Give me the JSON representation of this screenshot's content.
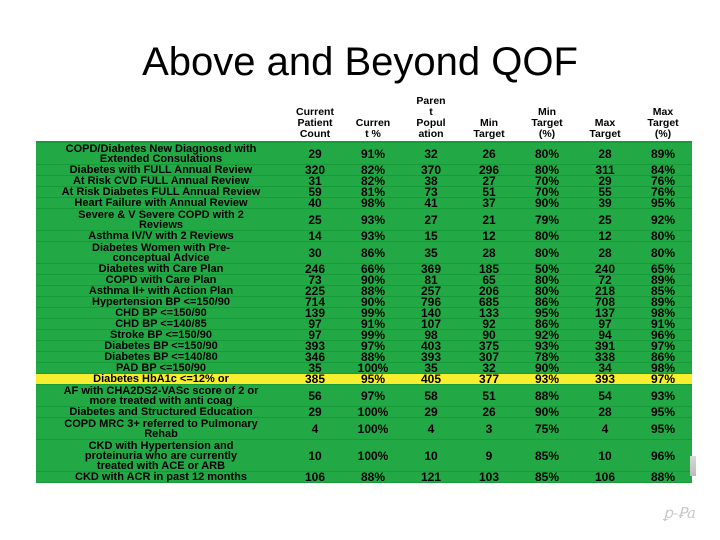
{
  "slide": {
    "title": "Above and Beyond QOF"
  },
  "table": {
    "columns": [
      {
        "label": ""
      },
      {
        "label": "Current\nPatient\nCount"
      },
      {
        "label": "Curren\nt %"
      },
      {
        "label": "Paren\nt\nPopul\nation"
      },
      {
        "label": "Min\nTarget"
      },
      {
        "label": "Min\nTarget\n(%)"
      },
      {
        "label": "Max\nTarget"
      },
      {
        "label": "Max\nTarget\n(%)"
      }
    ],
    "highlight_color": "#f7ee2f",
    "row_color": "#23a846",
    "rows": [
      {
        "label": "COPD/Diabetes New Diagnosed with\nExtended Consulations",
        "count": "29",
        "pct": "91%",
        "parent": "32",
        "min": "26",
        "min_pct": "80%",
        "max": "28",
        "max_pct": "89%"
      },
      {
        "label": "Diabetes with FULL Annual Review",
        "count": "320",
        "pct": "82%",
        "parent": "370",
        "min": "296",
        "min_pct": "80%",
        "max": "311",
        "max_pct": "84%"
      },
      {
        "label": "At Risk CVD FULL Annual Review",
        "count": "31",
        "pct": "82%",
        "parent": "38",
        "min": "27",
        "min_pct": "70%",
        "max": "29",
        "max_pct": "76%"
      },
      {
        "label": "At Risk Diabetes FULL Annual Review",
        "count": "59",
        "pct": "81%",
        "parent": "73",
        "min": "51",
        "min_pct": "70%",
        "max": "55",
        "max_pct": "76%"
      },
      {
        "label": "Heart Failure with Annual Review",
        "count": "40",
        "pct": "98%",
        "parent": "41",
        "min": "37",
        "min_pct": "90%",
        "max": "39",
        "max_pct": "95%"
      },
      {
        "label": "Severe & V Severe COPD with 2\nReviews",
        "count": "25",
        "pct": "93%",
        "parent": "27",
        "min": "21",
        "min_pct": "79%",
        "max": "25",
        "max_pct": "92%"
      },
      {
        "label": "Asthma IV/V with 2 Reviews",
        "count": "14",
        "pct": "93%",
        "parent": "15",
        "min": "12",
        "min_pct": "80%",
        "max": "12",
        "max_pct": "80%"
      },
      {
        "label": "Diabetes Women with Pre-\nconceptual Advice",
        "count": "30",
        "pct": "86%",
        "parent": "35",
        "min": "28",
        "min_pct": "80%",
        "max": "28",
        "max_pct": "80%"
      },
      {
        "label": "Diabetes with Care Plan",
        "count": "246",
        "pct": "66%",
        "parent": "369",
        "min": "185",
        "min_pct": "50%",
        "max": "240",
        "max_pct": "65%"
      },
      {
        "label": "COPD with Care Plan",
        "count": "73",
        "pct": "90%",
        "parent": "81",
        "min": "65",
        "min_pct": "80%",
        "max": "72",
        "max_pct": "89%"
      },
      {
        "label": "Asthma II+ with Action Plan",
        "count": "225",
        "pct": "88%",
        "parent": "257",
        "min": "206",
        "min_pct": "80%",
        "max": "218",
        "max_pct": "85%"
      },
      {
        "label": "Hypertension BP <=150/90",
        "count": "714",
        "pct": "90%",
        "parent": "796",
        "min": "685",
        "min_pct": "86%",
        "max": "708",
        "max_pct": "89%"
      },
      {
        "label": "CHD BP <=150/90",
        "count": "139",
        "pct": "99%",
        "parent": "140",
        "min": "133",
        "min_pct": "95%",
        "max": "137",
        "max_pct": "98%"
      },
      {
        "label": "CHD BP <=140/85",
        "count": "97",
        "pct": "91%",
        "parent": "107",
        "min": "92",
        "min_pct": "86%",
        "max": "97",
        "max_pct": "91%"
      },
      {
        "label": "Stroke BP <=150/90",
        "count": "97",
        "pct": "99%",
        "parent": "98",
        "min": "90",
        "min_pct": "92%",
        "max": "94",
        "max_pct": "96%"
      },
      {
        "label": "Diabetes BP <=150/90",
        "count": "393",
        "pct": "97%",
        "parent": "403",
        "min": "375",
        "min_pct": "93%",
        "max": "391",
        "max_pct": "97%"
      },
      {
        "label": "Diabetes BP <=140/80",
        "count": "346",
        "pct": "88%",
        "parent": "393",
        "min": "307",
        "min_pct": "78%",
        "max": "338",
        "max_pct": "86%"
      },
      {
        "label": "PAD BP <=150/90",
        "count": "35",
        "pct": "100%",
        "parent": "35",
        "min": "32",
        "min_pct": "90%",
        "max": "34",
        "max_pct": "98%"
      },
      {
        "label": "Diabetes HbA1c <=12% or",
        "count": "385",
        "pct": "95%",
        "parent": "405",
        "min": "377",
        "min_pct": "93%",
        "max": "393",
        "max_pct": "97%",
        "highlight": true
      },
      {
        "label": "AF with CHA2DS2-VASc score of 2 or\nmore treated with anti coag",
        "count": "56",
        "pct": "97%",
        "parent": "58",
        "min": "51",
        "min_pct": "88%",
        "max": "54",
        "max_pct": "93%"
      },
      {
        "label": "Diabetes and Structured Education",
        "count": "29",
        "pct": "100%",
        "parent": "29",
        "min": "26",
        "min_pct": "90%",
        "max": "28",
        "max_pct": "95%"
      },
      {
        "label": "COPD MRC 3+ referred to Pulmonary\nRehab",
        "count": "4",
        "pct": "100%",
        "parent": "4",
        "min": "3",
        "min_pct": "75%",
        "max": "4",
        "max_pct": "95%"
      },
      {
        "label": "CKD with Hypertension and\nproteinuria who are currently\ntreated with ACE or ARB",
        "count": "10",
        "pct": "100%",
        "parent": "10",
        "min": "9",
        "min_pct": "85%",
        "max": "10",
        "max_pct": "96%"
      },
      {
        "label": "CKD with ACR in past 12 months",
        "count": "106",
        "pct": "88%",
        "parent": "121",
        "min": "103",
        "min_pct": "85%",
        "max": "106",
        "max_pct": "88%"
      }
    ]
  }
}
